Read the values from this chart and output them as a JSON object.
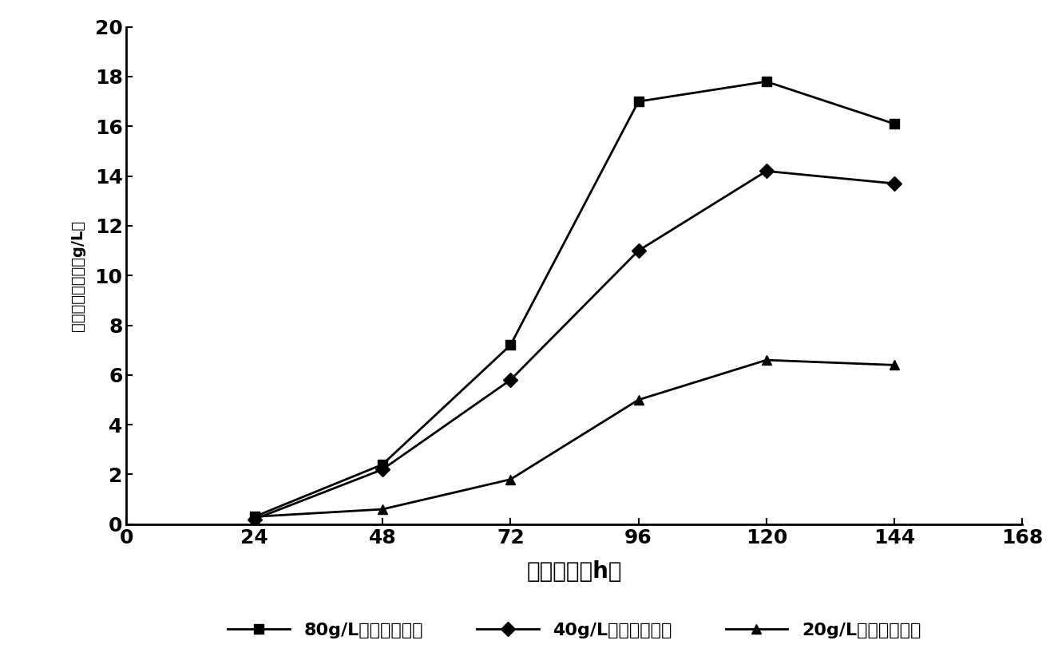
{
  "x": [
    24,
    48,
    72,
    96,
    120,
    144
  ],
  "series": [
    {
      "label": "80g/L菊苋汁培养基",
      "y": [
        0.3,
        2.4,
        7.2,
        17.0,
        17.8,
        16.1
      ],
      "marker": "s",
      "color": "#000000"
    },
    {
      "label": "40g/L菊苋汁培养基",
      "y": [
        0.2,
        2.2,
        5.8,
        11.0,
        14.2,
        13.7
      ],
      "marker": "D",
      "color": "#000000"
    },
    {
      "label": "20g/L菊苋汁培养基",
      "y": [
        0.3,
        0.6,
        1.8,
        5.0,
        6.6,
        6.4
      ],
      "marker": "^",
      "color": "#000000"
    }
  ],
  "xlabel": "培养时间（h）",
  "ylabel": "草酸脱炖酸活性（g/L）",
  "xlim": [
    0,
    168
  ],
  "ylim": [
    0,
    20
  ],
  "xticks": [
    0,
    24,
    48,
    72,
    96,
    120,
    144,
    168
  ],
  "yticks": [
    0,
    2,
    4,
    6,
    8,
    10,
    12,
    14,
    16,
    18,
    20
  ],
  "background_color": "#ffffff",
  "linewidth": 2.0,
  "markersize": 9,
  "xlabel_fontsize": 20,
  "ylabel_fontsize": 14,
  "tick_fontsize": 18,
  "legend_fontsize": 16
}
